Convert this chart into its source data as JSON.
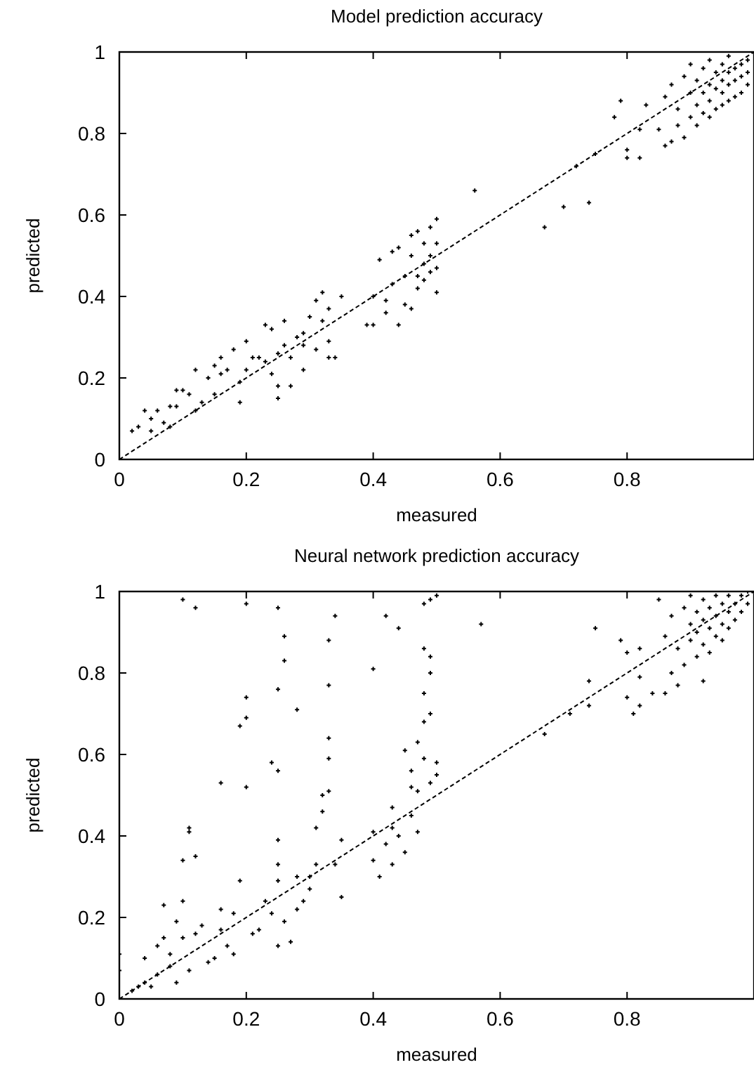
{
  "chart_data": [
    {
      "type": "scatter",
      "title": "Model prediction accuracy",
      "xlabel": "measured",
      "ylabel": "predicted",
      "xlim": [
        0,
        1
      ],
      "ylim": [
        0,
        1
      ],
      "xticks": [
        0,
        0.2,
        0.4,
        0.6,
        0.8
      ],
      "yticks": [
        0,
        0.2,
        0.4,
        0.6,
        0.8,
        1
      ],
      "series": [
        {
          "type": "scatter",
          "color": "#000000",
          "marker": "cross",
          "x": [
            0.02,
            0.03,
            0.04,
            0.05,
            0.05,
            0.06,
            0.07,
            0.08,
            0.08,
            0.09,
            0.09,
            0.1,
            0.11,
            0.12,
            0.13,
            0.12,
            0.14,
            0.15,
            0.15,
            0.16,
            0.17,
            0.16,
            0.18,
            0.19,
            0.19,
            0.2,
            0.2,
            0.21,
            0.22,
            0.23,
            0.23,
            0.24,
            0.24,
            0.25,
            0.25,
            0.25,
            0.26,
            0.26,
            0.27,
            0.27,
            0.28,
            0.29,
            0.29,
            0.29,
            0.3,
            0.31,
            0.31,
            0.32,
            0.32,
            0.33,
            0.33,
            0.33,
            0.34,
            0.35,
            0.39,
            0.4,
            0.4,
            0.41,
            0.42,
            0.42,
            0.43,
            0.43,
            0.44,
            0.44,
            0.45,
            0.45,
            0.46,
            0.46,
            0.46,
            0.47,
            0.47,
            0.47,
            0.48,
            0.48,
            0.48,
            0.49,
            0.49,
            0.49,
            0.5,
            0.5,
            0.5,
            0.5,
            0.56,
            0.67,
            0.7,
            0.72,
            0.74,
            0.75,
            0.78,
            0.79,
            0.8,
            0.8,
            0.82,
            0.82,
            0.83,
            0.85,
            0.86,
            0.86,
            0.87,
            0.87,
            0.88,
            0.88,
            0.89,
            0.89,
            0.9,
            0.9,
            0.9,
            0.91,
            0.91,
            0.91,
            0.92,
            0.92,
            0.92,
            0.93,
            0.93,
            0.93,
            0.93,
            0.94,
            0.94,
            0.94,
            0.95,
            0.95,
            0.95,
            0.95,
            0.96,
            0.96,
            0.96,
            0.96,
            0.97,
            0.97,
            0.97,
            0.98,
            0.98,
            0.98,
            0.99,
            0.99,
            0.99
          ],
          "values": [
            0.07,
            0.08,
            0.12,
            0.07,
            0.1,
            0.12,
            0.09,
            0.08,
            0.13,
            0.17,
            0.13,
            0.17,
            0.16,
            0.12,
            0.14,
            0.22,
            0.2,
            0.16,
            0.23,
            0.21,
            0.22,
            0.25,
            0.27,
            0.14,
            0.19,
            0.29,
            0.22,
            0.25,
            0.25,
            0.24,
            0.33,
            0.32,
            0.21,
            0.18,
            0.15,
            0.26,
            0.34,
            0.28,
            0.18,
            0.25,
            0.3,
            0.31,
            0.28,
            0.22,
            0.35,
            0.39,
            0.27,
            0.41,
            0.34,
            0.37,
            0.29,
            0.25,
            0.25,
            0.4,
            0.33,
            0.4,
            0.33,
            0.49,
            0.39,
            0.36,
            0.51,
            0.43,
            0.33,
            0.52,
            0.38,
            0.45,
            0.37,
            0.55,
            0.5,
            0.56,
            0.45,
            0.42,
            0.53,
            0.48,
            0.44,
            0.57,
            0.5,
            0.46,
            0.59,
            0.53,
            0.47,
            0.41,
            0.66,
            0.57,
            0.62,
            0.72,
            0.63,
            0.75,
            0.84,
            0.88,
            0.76,
            0.74,
            0.74,
            0.81,
            0.87,
            0.81,
            0.77,
            0.89,
            0.78,
            0.92,
            0.82,
            0.86,
            0.79,
            0.94,
            0.84,
            0.9,
            0.97,
            0.82,
            0.87,
            0.93,
            0.85,
            0.9,
            0.96,
            0.84,
            0.88,
            0.92,
            0.98,
            0.86,
            0.91,
            0.95,
            0.87,
            0.9,
            0.93,
            0.97,
            0.88,
            0.92,
            0.95,
            0.99,
            0.89,
            0.93,
            0.96,
            0.9,
            0.94,
            0.97,
            0.92,
            0.95,
            0.98
          ]
        },
        {
          "type": "line",
          "color": "#000000",
          "line_style": "dashed",
          "x": [
            0,
            1
          ],
          "values": [
            0,
            1
          ]
        }
      ]
    },
    {
      "type": "scatter",
      "title": "Neural network prediction accuracy",
      "xlabel": "measured",
      "ylabel": "predicted",
      "xlim": [
        0,
        1
      ],
      "ylim": [
        0,
        1
      ],
      "xticks": [
        0,
        0.2,
        0.4,
        0.6,
        0.8
      ],
      "yticks": [
        0,
        0.2,
        0.4,
        0.6,
        0.8,
        1
      ],
      "series": [
        {
          "type": "scatter",
          "color": "#000000",
          "marker": "cross",
          "x": [
            0,
            0,
            0.02,
            0.03,
            0.04,
            0.04,
            0.05,
            0.06,
            0.06,
            0.07,
            0.07,
            0.08,
            0.08,
            0.09,
            0.09,
            0.1,
            0.1,
            0.1,
            0.1,
            0.11,
            0.11,
            0.11,
            0.12,
            0.12,
            0.12,
            0.13,
            0.14,
            0.15,
            0.16,
            0.16,
            0.16,
            0.17,
            0.18,
            0.18,
            0.19,
            0.19,
            0.2,
            0.2,
            0.2,
            0.2,
            0.21,
            0.22,
            0.23,
            0.24,
            0.24,
            0.25,
            0.25,
            0.25,
            0.25,
            0.25,
            0.25,
            0.25,
            0.26,
            0.26,
            0.26,
            0.27,
            0.28,
            0.28,
            0.28,
            0.29,
            0.3,
            0.3,
            0.31,
            0.31,
            0.32,
            0.32,
            0.33,
            0.33,
            0.33,
            0.33,
            0.33,
            0.34,
            0.34,
            0.35,
            0.35,
            0.4,
            0.4,
            0.4,
            0.41,
            0.42,
            0.42,
            0.43,
            0.43,
            0.43,
            0.44,
            0.44,
            0.45,
            0.45,
            0.46,
            0.46,
            0.46,
            0.47,
            0.47,
            0.47,
            0.48,
            0.48,
            0.48,
            0.48,
            0.48,
            0.49,
            0.49,
            0.49,
            0.49,
            0.49,
            0.5,
            0.5,
            0.5,
            0.57,
            0.67,
            0.71,
            0.74,
            0.74,
            0.75,
            0.79,
            0.8,
            0.8,
            0.81,
            0.82,
            0.82,
            0.82,
            0.84,
            0.85,
            0.86,
            0.86,
            0.87,
            0.87,
            0.88,
            0.88,
            0.89,
            0.89,
            0.9,
            0.9,
            0.9,
            0.91,
            0.91,
            0.91,
            0.92,
            0.92,
            0.92,
            0.92,
            0.93,
            0.93,
            0.93,
            0.94,
            0.94,
            0.94,
            0.95,
            0.95,
            0.95,
            0.96,
            0.96,
            0.96,
            0.97,
            0.97,
            0.98,
            0.98,
            0.99,
            0.99
          ],
          "values": [
            0.11,
            0.07,
            0.02,
            0.03,
            0.1,
            0.04,
            0.03,
            0.06,
            0.13,
            0.23,
            0.15,
            0.08,
            0.11,
            0.19,
            0.04,
            0.24,
            0.34,
            0.15,
            0.98,
            0.07,
            0.42,
            0.41,
            0.35,
            0.16,
            0.96,
            0.18,
            0.09,
            0.1,
            0.17,
            0.22,
            0.53,
            0.13,
            0.11,
            0.21,
            0.67,
            0.29,
            0.69,
            0.97,
            0.52,
            0.74,
            0.16,
            0.17,
            0.24,
            0.58,
            0.21,
            0.56,
            0.39,
            0.33,
            0.29,
            0.76,
            0.96,
            0.13,
            0.83,
            0.89,
            0.19,
            0.14,
            0.71,
            0.22,
            0.3,
            0.24,
            0.3,
            0.27,
            0.42,
            0.33,
            0.46,
            0.5,
            0.51,
            0.64,
            0.59,
            0.77,
            0.88,
            0.94,
            0.33,
            0.39,
            0.25,
            0.41,
            0.34,
            0.81,
            0.3,
            0.38,
            0.94,
            0.47,
            0.42,
            0.33,
            0.4,
            0.91,
            0.36,
            0.61,
            0.45,
            0.52,
            0.56,
            0.41,
            0.63,
            0.51,
            0.59,
            0.68,
            0.75,
            0.86,
            0.97,
            0.8,
            0.7,
            0.84,
            0.53,
            0.98,
            0.55,
            0.58,
            0.99,
            0.92,
            0.65,
            0.7,
            0.72,
            0.78,
            0.91,
            0.88,
            0.85,
            0.74,
            0.7,
            0.79,
            0.72,
            0.86,
            0.75,
            0.98,
            0.75,
            0.89,
            0.8,
            0.94,
            0.77,
            0.86,
            0.82,
            0.96,
            0.88,
            0.92,
            0.99,
            0.84,
            0.9,
            0.95,
            0.78,
            0.87,
            0.93,
            0.98,
            0.85,
            0.91,
            0.96,
            0.89,
            0.94,
            0.99,
            0.88,
            0.92,
            0.97,
            0.91,
            0.95,
            0.99,
            0.93,
            0.97,
            0.95,
            0.99,
            0.97,
            1
          ]
        },
        {
          "type": "line",
          "color": "#000000",
          "line_style": "dashed",
          "x": [
            0,
            1
          ],
          "values": [
            0,
            1
          ]
        }
      ]
    }
  ]
}
